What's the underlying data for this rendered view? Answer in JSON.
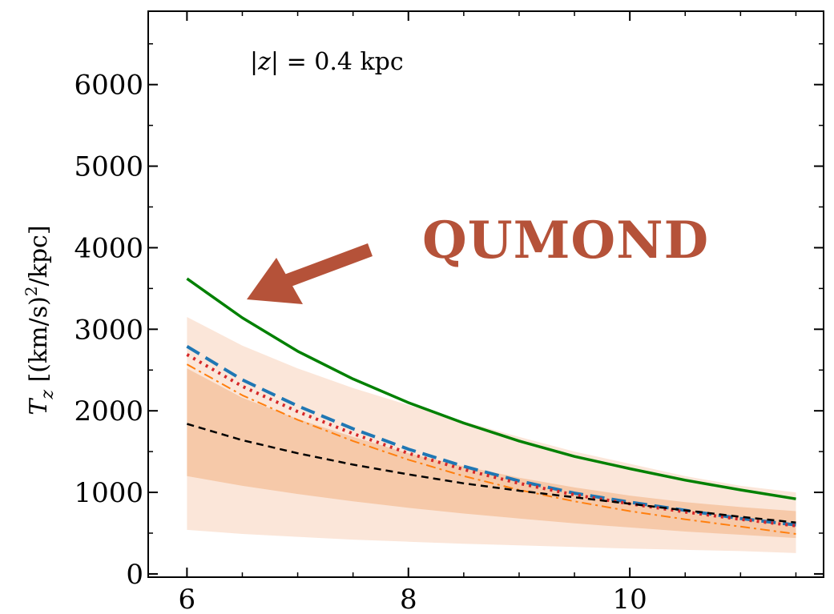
{
  "chart_data": {
    "type": "line",
    "title": "",
    "xlabel": "",
    "ylabel": "T_z [(km/s)^2/kpc]",
    "ylabel_parts": {
      "symbol": "T",
      "subscript": "z",
      "units_left": " [(km/s)",
      "power": "2",
      "units_right": "/kpc]"
    },
    "xlim": [
      5.65,
      11.75
    ],
    "ylim": [
      -40,
      6900
    ],
    "xticks": [
      6,
      8,
      10
    ],
    "xtick_labels": [
      "6",
      "8",
      "10"
    ],
    "yticks": [
      0,
      1000,
      2000,
      3000,
      4000,
      5000,
      6000
    ],
    "ytick_labels": [
      "0",
      "1000",
      "2000",
      "3000",
      "4000",
      "5000",
      "6000"
    ],
    "grid": false,
    "annotation": {
      "prefix": "|",
      "var": "z",
      "suffix": "| = 0.4 kpc"
    },
    "callout": {
      "text": "QUMOND",
      "color": "#b55239"
    },
    "bands": [
      {
        "role": "outer",
        "color": "#fbe6d9",
        "x": [
          6,
          6.5,
          7,
          7.5,
          8,
          8.5,
          9,
          9.5,
          10,
          10.5,
          11,
          11.5
        ],
        "lower": [
          540,
          490,
          455,
          420,
          395,
          370,
          350,
          330,
          310,
          295,
          280,
          255
        ],
        "upper": [
          3150,
          2800,
          2520,
          2280,
          2070,
          1870,
          1680,
          1500,
          1350,
          1200,
          1080,
          1000
        ]
      },
      {
        "role": "inner",
        "color": "#f6c9a9",
        "x": [
          6,
          6.5,
          7,
          7.5,
          8,
          8.5,
          9,
          9.5,
          10,
          10.5,
          11,
          11.5
        ],
        "lower": [
          1200,
          1080,
          980,
          890,
          810,
          740,
          680,
          620,
          570,
          520,
          480,
          440
        ],
        "upper": [
          2520,
          2160,
          1900,
          1680,
          1480,
          1320,
          1180,
          1060,
          960,
          880,
          820,
          770
        ]
      }
    ],
    "series": [
      {
        "color": "#008000",
        "width": 3.5,
        "dash": "",
        "x": [
          6,
          6.5,
          7,
          7.5,
          8,
          8.5,
          9,
          9.5,
          10,
          10.5,
          11,
          11.5
        ],
        "y": [
          3620,
          3140,
          2730,
          2390,
          2100,
          1850,
          1630,
          1440,
          1290,
          1150,
          1030,
          920
        ]
      },
      {
        "color": "#1f77b4",
        "width": 4,
        "dash": "18,9",
        "x": [
          6,
          6.5,
          7,
          7.5,
          8,
          8.5,
          9,
          9.5,
          10,
          10.5,
          11,
          11.5
        ],
        "y": [
          2790,
          2380,
          2060,
          1780,
          1530,
          1320,
          1140,
          990,
          880,
          780,
          680,
          600
        ]
      },
      {
        "color": "#d62728",
        "width": 4,
        "dash": "3,6",
        "x": [
          6,
          6.5,
          7,
          7.5,
          8,
          8.5,
          9,
          9.5,
          10,
          10.5,
          11,
          11.5
        ],
        "y": [
          2690,
          2300,
          1990,
          1720,
          1480,
          1280,
          1110,
          970,
          860,
          760,
          670,
          590
        ]
      },
      {
        "color": "#ff7f0e",
        "width": 2,
        "dash": "12,5,3,5",
        "x": [
          6,
          6.5,
          7,
          7.5,
          8,
          8.5,
          9,
          9.5,
          10,
          10.5,
          11,
          11.5
        ],
        "y": [
          2570,
          2190,
          1890,
          1630,
          1400,
          1200,
          1030,
          890,
          770,
          670,
          580,
          490
        ]
      },
      {
        "color": "#000000",
        "width": 2.5,
        "dash": "9,6",
        "x": [
          6,
          6.5,
          7,
          7.5,
          8,
          8.5,
          9,
          9.5,
          10,
          10.5,
          11,
          11.5
        ],
        "y": [
          1840,
          1640,
          1480,
          1340,
          1220,
          1110,
          1020,
          940,
          860,
          780,
          700,
          630
        ]
      }
    ]
  }
}
